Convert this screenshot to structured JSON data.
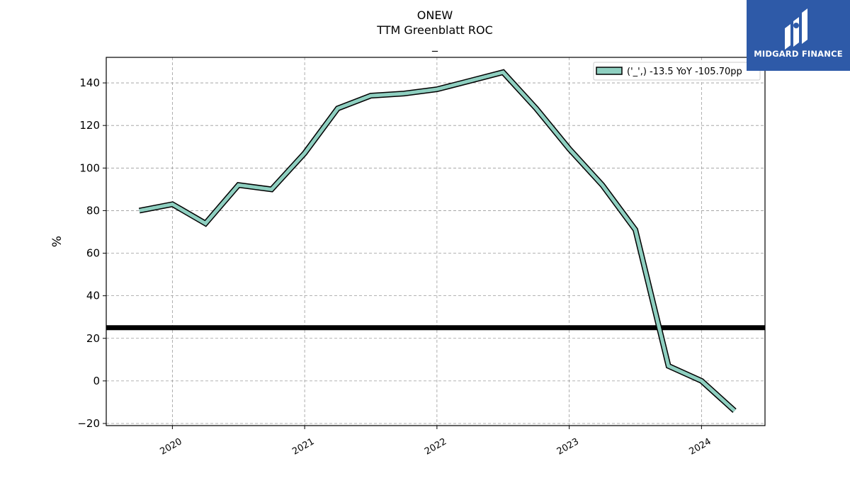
{
  "chart_data": {
    "type": "line",
    "title": "ONEW",
    "subtitle": "TTM Greenblatt ROC",
    "subtitle2": "_",
    "xlabel": "",
    "ylabel": "%",
    "xlim": [
      2019.5,
      2024.48
    ],
    "ylim": [
      -21,
      152
    ],
    "yticks": [
      -20,
      0,
      20,
      40,
      60,
      80,
      100,
      120,
      140
    ],
    "xticks": [
      2020,
      2021,
      2022,
      2023,
      2024
    ],
    "xtick_labels": [
      "2020",
      "2021",
      "2022",
      "2023",
      "2024"
    ],
    "grid": true,
    "legend_position": "top-right",
    "series": [
      {
        "name": "('_',) -13.5 YoY -105.70pp",
        "color": "#8ecfc0",
        "x": [
          2019.75,
          2020.0,
          2020.25,
          2020.5,
          2020.75,
          2021.0,
          2021.25,
          2021.5,
          2021.75,
          2022.0,
          2022.25,
          2022.5,
          2022.75,
          2023.0,
          2023.25,
          2023.5,
          2023.75,
          2024.0,
          2024.25
        ],
        "y": [
          80,
          83,
          74,
          92,
          90,
          107,
          128,
          134,
          135,
          137,
          141,
          145,
          128,
          109,
          92,
          71,
          7,
          0,
          -14
        ]
      }
    ],
    "hline": {
      "y": 25,
      "color": "#000000"
    }
  },
  "logo": {
    "text": "MIDGARD FINANCE"
  }
}
